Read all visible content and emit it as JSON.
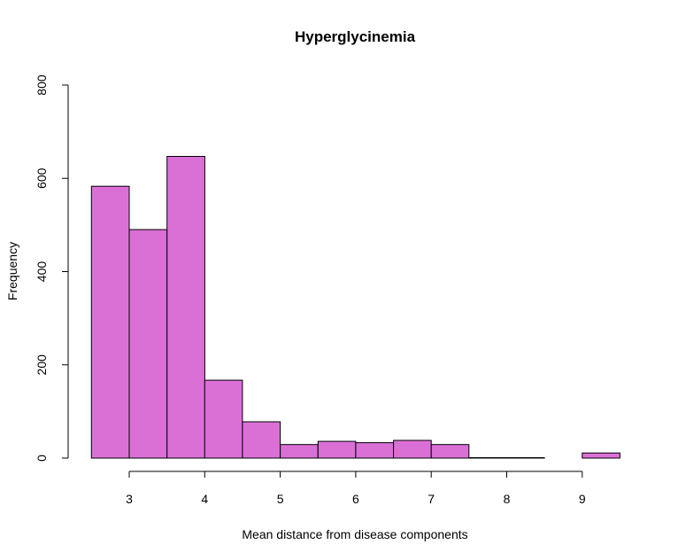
{
  "chart_data": {
    "type": "bar",
    "title": "Hyperglycinemia",
    "xlabel": "Mean distance from disease components",
    "ylabel": "Frequency",
    "bar_color": "#DA70D6",
    "xlim": [
      2.5,
      9.5
    ],
    "ylim": [
      0,
      800
    ],
    "x_ticks": [
      3,
      4,
      5,
      6,
      7,
      8,
      9
    ],
    "y_ticks": [
      0,
      200,
      400,
      600,
      800
    ],
    "bins": [
      {
        "start": 2.5,
        "end": 3.0,
        "count": 583
      },
      {
        "start": 3.0,
        "end": 3.5,
        "count": 490
      },
      {
        "start": 3.5,
        "end": 4.0,
        "count": 647
      },
      {
        "start": 4.0,
        "end": 4.5,
        "count": 167
      },
      {
        "start": 4.5,
        "end": 5.0,
        "count": 78
      },
      {
        "start": 5.0,
        "end": 5.5,
        "count": 29
      },
      {
        "start": 5.5,
        "end": 6.0,
        "count": 36
      },
      {
        "start": 6.0,
        "end": 6.5,
        "count": 33
      },
      {
        "start": 6.5,
        "end": 7.0,
        "count": 38
      },
      {
        "start": 7.0,
        "end": 7.5,
        "count": 29
      },
      {
        "start": 7.5,
        "end": 8.0,
        "count": 1
      },
      {
        "start": 8.0,
        "end": 8.5,
        "count": 1
      },
      {
        "start": 8.5,
        "end": 9.0,
        "count": 0
      },
      {
        "start": 9.0,
        "end": 9.5,
        "count": 11
      }
    ],
    "grid": false,
    "legend": "none"
  }
}
